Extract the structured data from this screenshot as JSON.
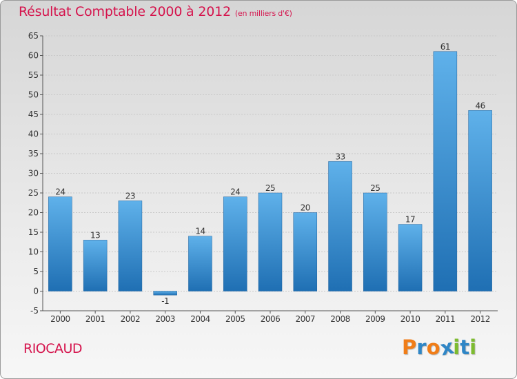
{
  "header": {
    "title": "Résultat Comptable 2000 à 2012",
    "subtitle": "(en milliers d'€)"
  },
  "footer": {
    "place": "RIOCAUD",
    "brand_letters": [
      "P",
      "r",
      "o",
      "x",
      "i",
      "t",
      "i"
    ],
    "brand_colors": [
      "#f07d18",
      "#2f86c6",
      "#f07d18",
      "#2f86c6",
      "#7dbb2f",
      "#2f86c6",
      "#7dbb2f"
    ]
  },
  "colors": {
    "bar_top": "#5fb1ea",
    "bar_bottom": "#1f6fb3",
    "axis_text": "#333333",
    "grid": "#c9c9c9"
  },
  "chart_data": {
    "type": "bar",
    "title": "Résultat Comptable 2000 à 2012",
    "subtitle": "(en milliers d'€)",
    "categories": [
      "2000",
      "2001",
      "2002",
      "2003",
      "2004",
      "2005",
      "2006",
      "2007",
      "2008",
      "2009",
      "2010",
      "2011",
      "2012"
    ],
    "values": [
      24,
      13,
      23,
      -1,
      14,
      24,
      25,
      20,
      33,
      25,
      17,
      61,
      46
    ],
    "ylim": [
      -5,
      65
    ],
    "yticks": [
      -5,
      0,
      5,
      10,
      15,
      20,
      25,
      30,
      35,
      40,
      45,
      50,
      55,
      60,
      65
    ],
    "grid": true
  }
}
